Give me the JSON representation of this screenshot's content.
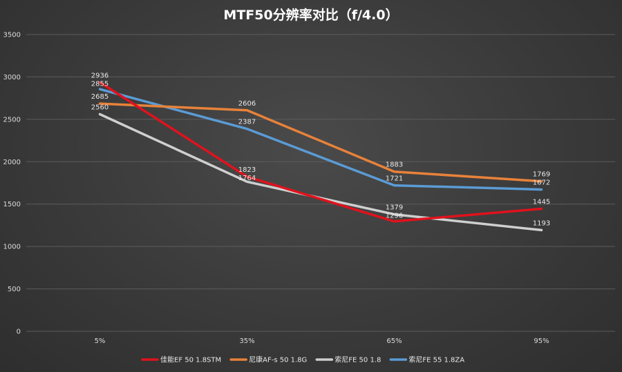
{
  "chart_data": {
    "type": "line",
    "title": "MTF50分辨率对比（f/4.0）",
    "xlabel": "",
    "ylabel": "",
    "categories": [
      "5%",
      "35%",
      "65%",
      "95%"
    ],
    "ylim": [
      0,
      3500
    ],
    "yticks": [
      0,
      500,
      1000,
      1500,
      2000,
      2500,
      3000,
      3500
    ],
    "grid": true,
    "legend_position": "bottom",
    "series": [
      {
        "name": "佳能EF 50 1.8STM",
        "color": "#e0121c",
        "values": [
          2936,
          1823,
          1296,
          1445
        ]
      },
      {
        "name": "尼康AF-s 50 1.8G",
        "color": "#e8823a",
        "values": [
          2685,
          2606,
          1883,
          1769
        ]
      },
      {
        "name": "索尼FE 50 1.8",
        "color": "#cfcfcf",
        "values": [
          2560,
          1764,
          1379,
          1193
        ]
      },
      {
        "name": "索尼FE 55 1.8ZA",
        "color": "#5b9bd5",
        "values": [
          2855,
          2387,
          1721,
          1672
        ]
      }
    ]
  }
}
